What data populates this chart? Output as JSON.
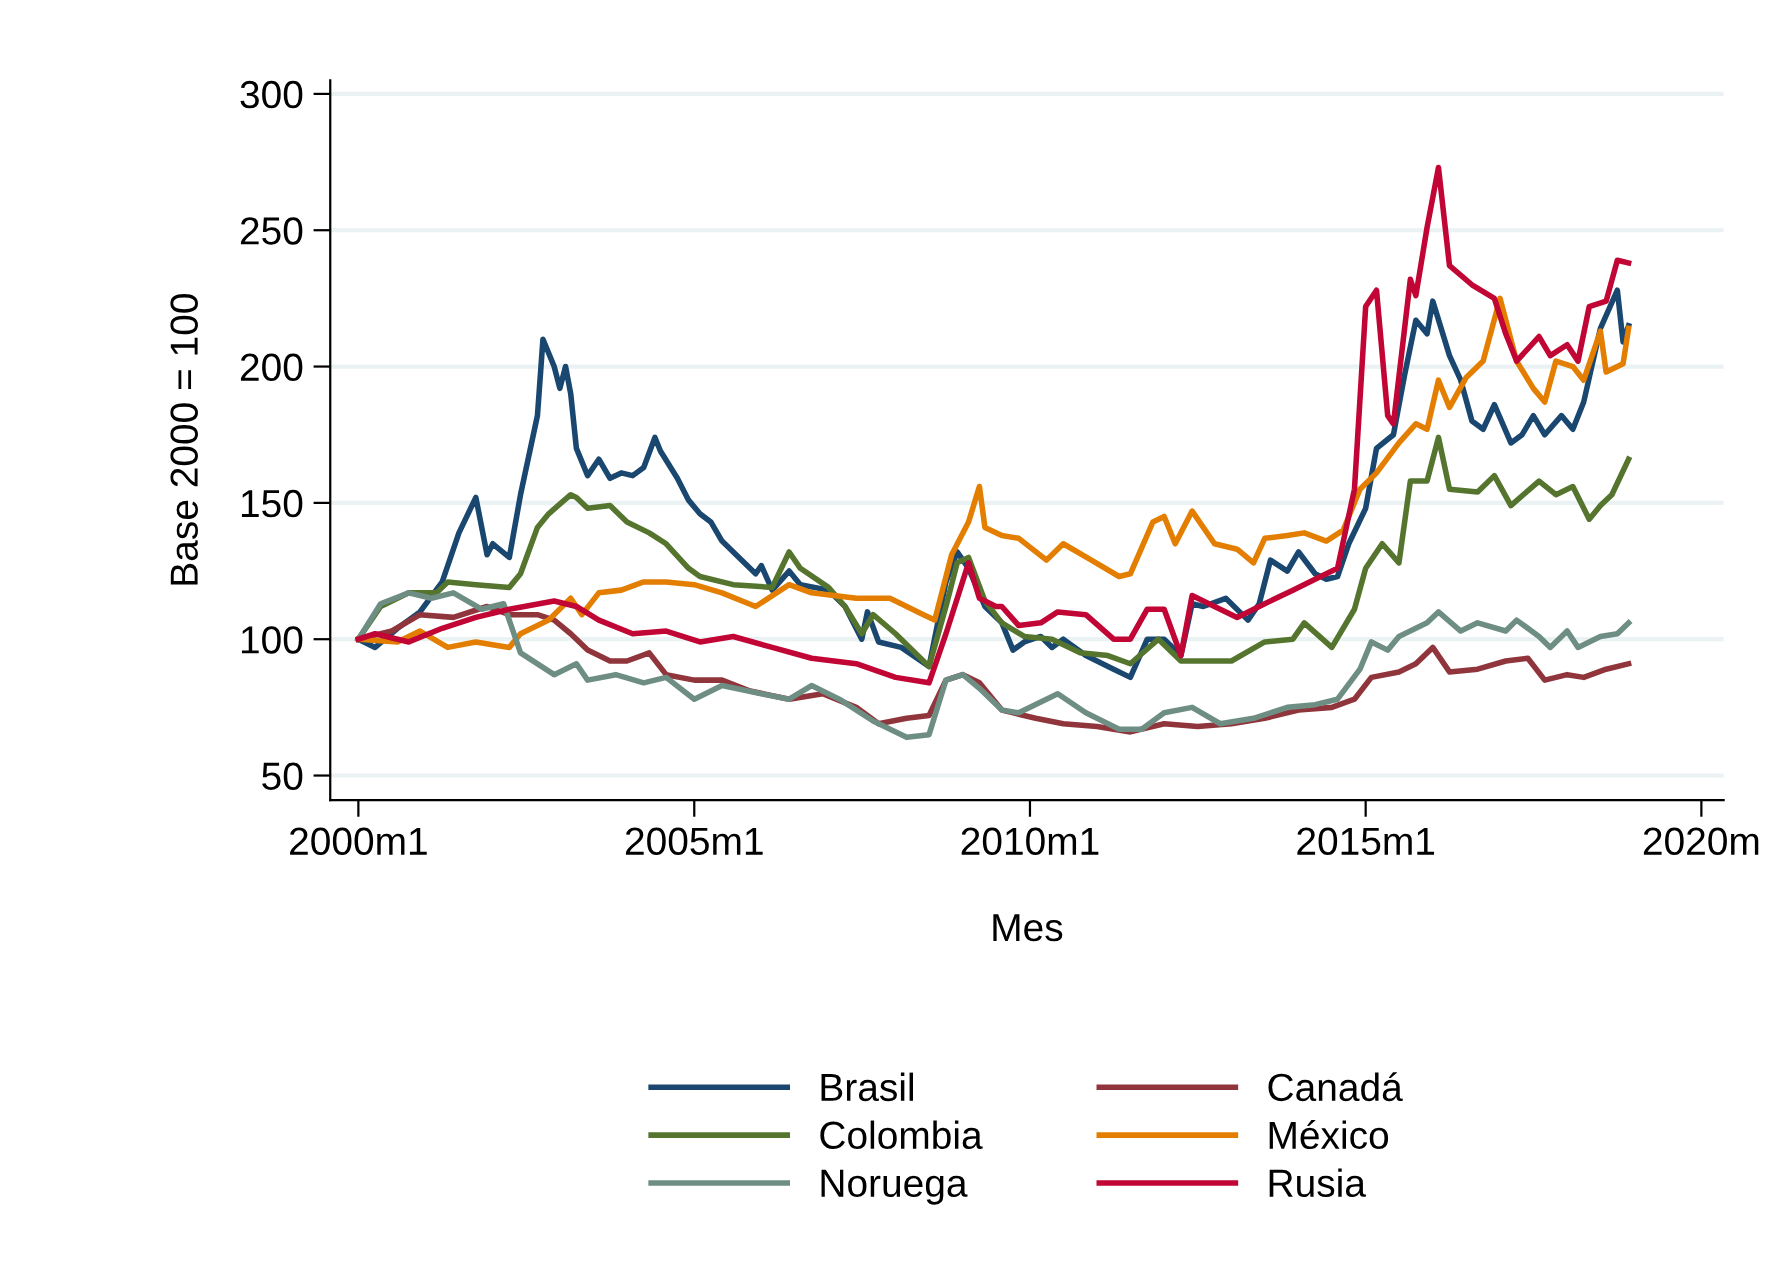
{
  "chart_data": {
    "type": "line",
    "xlabel": "Mes",
    "ylabel": "Base 2000 = 100",
    "xlim": [
      "1999-08",
      "2020-05"
    ],
    "xticks": [
      {
        "value": "2000-01",
        "label": "2000m1"
      },
      {
        "value": "2005-01",
        "label": "2005m1"
      },
      {
        "value": "2010-01",
        "label": "2010m1"
      },
      {
        "value": "2015-01",
        "label": "2015m1"
      },
      {
        "value": "2020-01",
        "label": "2020m"
      }
    ],
    "ylim": [
      41,
      305
    ],
    "yticks": [
      50,
      100,
      150,
      200,
      250,
      300
    ],
    "grid": "y",
    "legend": "bottom",
    "marker": "none",
    "line_style": "solid",
    "series": [
      {
        "name": "Brasil",
        "color": "#1a476f",
        "x": [
          "2000-01",
          "2000-04",
          "2000-08",
          "2000-12",
          "2001-04",
          "2001-07",
          "2001-10",
          "2001-12",
          "2002-01",
          "2002-04",
          "2002-06",
          "2002-09",
          "2002-10",
          "2002-12",
          "2003-01",
          "2003-02",
          "2003-03",
          "2003-04",
          "2003-06",
          "2003-08",
          "2003-10",
          "2003-12",
          "2004-02",
          "2004-04",
          "2004-06",
          "2004-07",
          "2004-10",
          "2004-12",
          "2005-02",
          "2005-04",
          "2005-06",
          "2005-09",
          "2005-12",
          "2006-01",
          "2006-03",
          "2006-06",
          "2006-08",
          "2007-01",
          "2007-04",
          "2007-07",
          "2007-08",
          "2007-10",
          "2008-02",
          "2008-07",
          "2008-10",
          "2008-12",
          "2009-02",
          "2009-05",
          "2009-08",
          "2009-10",
          "2009-12",
          "2010-03",
          "2010-05",
          "2010-07",
          "2010-11",
          "2011-04",
          "2011-07",
          "2011-10",
          "2012-01",
          "2012-04",
          "2012-06",
          "2012-08",
          "2012-12",
          "2013-04",
          "2013-06",
          "2013-08",
          "2013-11",
          "2014-01",
          "2014-04",
          "2014-06",
          "2014-08",
          "2014-10",
          "2015-01",
          "2015-03",
          "2015-06",
          "2015-08",
          "2015-10",
          "2015-12",
          "2016-01",
          "2016-04",
          "2016-06",
          "2016-08",
          "2016-10",
          "2016-12",
          "2017-03",
          "2017-05",
          "2017-07",
          "2017-09",
          "2017-12",
          "2018-02",
          "2018-04",
          "2018-07",
          "2018-10",
          "2018-11",
          "2018-12"
        ],
        "values": [
          100,
          97,
          104,
          110,
          121,
          139,
          152,
          131,
          135,
          130,
          153,
          182,
          210,
          200,
          192,
          200,
          190,
          170,
          160,
          166,
          159,
          161,
          160,
          163,
          174,
          169,
          159,
          151,
          146,
          143,
          136,
          130,
          124,
          127,
          118,
          125,
          120,
          118,
          112,
          100,
          110,
          99,
          97,
          90,
          121,
          132,
          126,
          112,
          106,
          96,
          99,
          101,
          97,
          100,
          94,
          89,
          86,
          100,
          100,
          94,
          113,
          112,
          115,
          107,
          113,
          129,
          125,
          132,
          124,
          122,
          123,
          135,
          148,
          170,
          175,
          197,
          217,
          212,
          224,
          204,
          195,
          180,
          177,
          186,
          172,
          175,
          182,
          175,
          182,
          177,
          187,
          214,
          228,
          209,
          215
        ]
      },
      {
        "name": "Canadá",
        "color": "#90353b",
        "x": [
          "2000-01",
          "2000-07",
          "2000-12",
          "2001-06",
          "2001-12",
          "2002-04",
          "2002-09",
          "2002-12",
          "2003-03",
          "2003-06",
          "2003-10",
          "2004-01",
          "2004-05",
          "2004-08",
          "2005-01",
          "2005-06",
          "2005-11",
          "2006-06",
          "2006-12",
          "2007-06",
          "2007-10",
          "2008-03",
          "2008-07",
          "2008-10",
          "2009-01",
          "2009-04",
          "2009-08",
          "2010-02",
          "2010-07",
          "2011-01",
          "2011-07",
          "2012-01",
          "2012-07",
          "2013-01",
          "2013-07",
          "2014-01",
          "2014-07",
          "2014-11",
          "2015-02",
          "2015-07",
          "2015-10",
          "2016-01",
          "2016-04",
          "2016-09",
          "2017-02",
          "2017-06",
          "2017-09",
          "2018-01",
          "2018-04",
          "2018-08",
          "2018-12"
        ],
        "values": [
          100,
          103,
          109,
          108,
          112,
          109,
          109,
          107,
          102,
          96,
          92,
          92,
          95,
          87,
          85,
          85,
          81,
          78,
          80,
          75,
          69,
          71,
          72,
          85,
          87,
          84,
          74,
          71,
          69,
          68,
          66,
          69,
          68,
          69,
          71,
          74,
          75,
          78,
          86,
          88,
          91,
          97,
          88,
          89,
          92,
          93,
          85,
          87,
          86,
          89,
          91
        ]
      },
      {
        "name": "Colombia",
        "color": "#55752f",
        "x": [
          "2000-01",
          "2000-05",
          "2000-10",
          "2001-03",
          "2001-05",
          "2001-10",
          "2002-04",
          "2002-06",
          "2002-09",
          "2002-11",
          "2003-03",
          "2003-04",
          "2003-06",
          "2003-10",
          "2004-01",
          "2004-05",
          "2004-08",
          "2004-12",
          "2005-02",
          "2005-08",
          "2006-03",
          "2006-06",
          "2006-08",
          "2007-01",
          "2007-04",
          "2007-07",
          "2007-09",
          "2008-01",
          "2008-07",
          "2008-10",
          "2008-12",
          "2009-02",
          "2009-05",
          "2009-08",
          "2009-12",
          "2010-05",
          "2010-10",
          "2011-03",
          "2011-07",
          "2011-12",
          "2012-04",
          "2012-08",
          "2013-01",
          "2013-07",
          "2013-12",
          "2014-02",
          "2014-07",
          "2014-11",
          "2015-01",
          "2015-04",
          "2015-07",
          "2015-09",
          "2015-12",
          "2016-02",
          "2016-04",
          "2016-09",
          "2016-12",
          "2017-03",
          "2017-08",
          "2017-11",
          "2018-02",
          "2018-05",
          "2018-07",
          "2018-09",
          "2018-12"
        ],
        "values": [
          100,
          112,
          117,
          117,
          121,
          120,
          119,
          124,
          141,
          146,
          153,
          152,
          148,
          149,
          143,
          139,
          135,
          126,
          123,
          120,
          119,
          132,
          126,
          119,
          112,
          102,
          109,
          102,
          90,
          112,
          128,
          130,
          114,
          106,
          101,
          100,
          95,
          94,
          91,
          100,
          92,
          92,
          92,
          99,
          100,
          106,
          97,
          111,
          126,
          135,
          128,
          158,
          158,
          174,
          155,
          154,
          160,
          149,
          158,
          153,
          156,
          144,
          149,
          153,
          166
        ]
      },
      {
        "name": "México",
        "color": "#e37e00",
        "x": [
          "2000-01",
          "2000-08",
          "2000-12",
          "2001-05",
          "2001-10",
          "2002-04",
          "2002-06",
          "2002-11",
          "2003-03",
          "2003-05",
          "2003-08",
          "2003-12",
          "2004-04",
          "2004-08",
          "2005-01",
          "2005-06",
          "2005-12",
          "2006-06",
          "2006-10",
          "2007-06",
          "2007-12",
          "2008-06",
          "2008-08",
          "2008-11",
          "2009-02",
          "2009-04",
          "2009-05",
          "2009-08",
          "2009-11",
          "2010-04",
          "2010-07",
          "2010-12",
          "2011-05",
          "2011-07",
          "2011-11",
          "2012-01",
          "2012-03",
          "2012-06",
          "2012-10",
          "2013-02",
          "2013-05",
          "2013-07",
          "2013-11",
          "2014-02",
          "2014-06",
          "2014-09",
          "2014-12",
          "2015-03",
          "2015-07",
          "2015-10",
          "2015-12",
          "2016-02",
          "2016-04",
          "2016-07",
          "2016-10",
          "2017-01",
          "2017-04",
          "2017-07",
          "2017-09",
          "2017-11",
          "2018-02",
          "2018-04",
          "2018-07",
          "2018-08",
          "2018-11",
          "2018-12"
        ],
        "values": [
          100,
          99,
          103,
          97,
          99,
          97,
          102,
          107,
          115,
          109,
          117,
          118,
          121,
          121,
          120,
          117,
          112,
          120,
          117,
          115,
          115,
          109,
          107,
          131,
          143,
          156,
          141,
          138,
          137,
          129,
          135,
          129,
          123,
          124,
          143,
          145,
          135,
          147,
          135,
          133,
          128,
          137,
          138,
          139,
          136,
          140,
          155,
          161,
          172,
          179,
          177,
          195,
          185,
          196,
          202,
          225,
          202,
          192,
          187,
          202,
          200,
          195,
          213,
          198,
          201,
          214
        ]
      },
      {
        "name": "Noruega",
        "color": "#6e8e84",
        "x": [
          "2000-01",
          "2000-05",
          "2000-10",
          "2001-02",
          "2001-06",
          "2001-11",
          "2002-03",
          "2002-06",
          "2002-12",
          "2003-04",
          "2003-06",
          "2003-11",
          "2004-04",
          "2004-08",
          "2005-01",
          "2005-06",
          "2006-01",
          "2006-06",
          "2006-10",
          "2007-03",
          "2007-09",
          "2008-03",
          "2008-07",
          "2008-10",
          "2009-01",
          "2009-04",
          "2009-08",
          "2009-11",
          "2010-06",
          "2010-11",
          "2011-05",
          "2011-09",
          "2012-01",
          "2012-06",
          "2012-11",
          "2013-05",
          "2013-11",
          "2014-04",
          "2014-08",
          "2014-12",
          "2015-02",
          "2015-05",
          "2015-07",
          "2015-12",
          "2016-02",
          "2016-06",
          "2016-09",
          "2017-02",
          "2017-04",
          "2017-08",
          "2017-10",
          "2018-01",
          "2018-03",
          "2018-07",
          "2018-10",
          "2018-12"
        ],
        "values": [
          100,
          113,
          117,
          115,
          117,
          111,
          113,
          95,
          87,
          91,
          85,
          87,
          84,
          86,
          78,
          83,
          80,
          78,
          83,
          78,
          70,
          64,
          65,
          85,
          87,
          82,
          74,
          73,
          80,
          73,
          67,
          67,
          73,
          75,
          69,
          71,
          75,
          76,
          78,
          89,
          99,
          96,
          101,
          106,
          110,
          103,
          106,
          103,
          107,
          101,
          97,
          103,
          97,
          101,
          102,
          106
        ]
      },
      {
        "name": "Rusia",
        "color": "#c10534",
        "x": [
          "2000-01",
          "2000-04",
          "2000-10",
          "2001-04",
          "2001-10",
          "2002-04",
          "2002-12",
          "2003-04",
          "2003-08",
          "2004-02",
          "2004-08",
          "2005-02",
          "2005-08",
          "2006-03",
          "2006-10",
          "2007-06",
          "2008-01",
          "2008-07",
          "2008-10",
          "2009-02",
          "2009-04",
          "2009-07",
          "2009-08",
          "2009-11",
          "2010-03",
          "2010-06",
          "2010-11",
          "2011-04",
          "2011-07",
          "2011-10",
          "2012-01",
          "2012-04",
          "2012-06",
          "2012-10",
          "2013-02",
          "2013-07",
          "2013-12",
          "2014-05",
          "2014-08",
          "2014-11",
          "2015-01",
          "2015-03",
          "2015-05",
          "2015-06",
          "2015-09",
          "2015-10",
          "2015-12",
          "2016-02",
          "2016-04",
          "2016-08",
          "2016-12",
          "2017-02",
          "2017-04",
          "2017-08",
          "2017-10",
          "2018-01",
          "2018-03",
          "2018-05",
          "2018-08",
          "2018-10",
          "2018-12"
        ],
        "values": [
          100,
          102,
          99,
          104,
          108,
          111,
          114,
          112,
          107,
          102,
          103,
          99,
          101,
          97,
          93,
          91,
          86,
          84,
          102,
          128,
          115,
          112,
          112,
          105,
          106,
          110,
          109,
          100,
          100,
          111,
          111,
          94,
          116,
          112,
          108,
          113,
          118,
          123,
          126,
          155,
          222,
          228,
          182,
          179,
          232,
          226,
          251,
          273,
          237,
          230,
          225,
          212,
          202,
          211,
          204,
          208,
          202,
          222,
          224,
          239,
          238
        ]
      }
    ]
  }
}
